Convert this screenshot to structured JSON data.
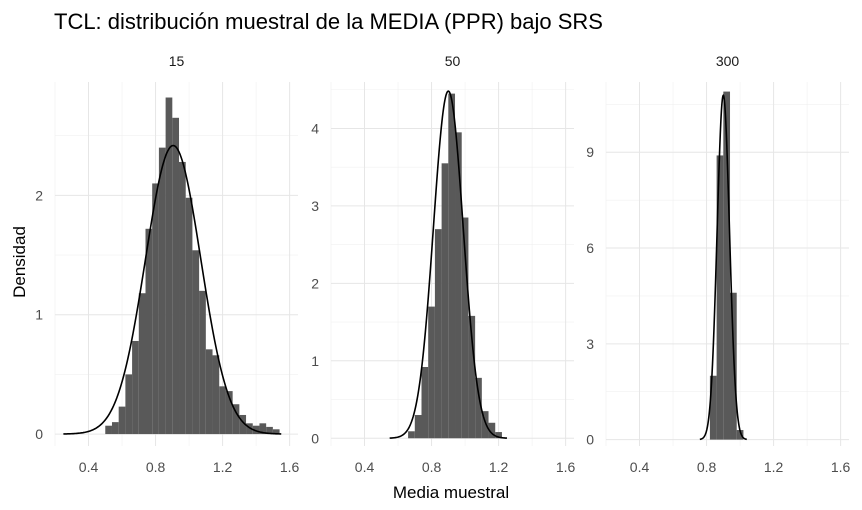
{
  "chart_data": {
    "type": "histogram",
    "title": "TCL: distribución muestral de la MEDIA (PPR) bajo SRS",
    "xlabel": "Media muestral",
    "ylabel": "Densidad",
    "xlim": [
      0.2,
      1.65
    ],
    "xticks": [
      "0.4",
      "0.8",
      "1.2",
      "1.6"
    ],
    "x_tick_values": [
      0.4,
      0.8,
      1.2,
      1.6
    ],
    "grid": true,
    "theme": "minimal",
    "bar_color": "#595959",
    "curve_color": "#000000",
    "bin_width": 0.04,
    "facets": [
      {
        "label": "15",
        "ylim": [
          -0.1,
          2.95
        ],
        "yticks": [
          "0",
          "1",
          "2"
        ],
        "y_tick_values": [
          0,
          1,
          2
        ],
        "bins": [
          [
            0.5,
            0.07
          ],
          [
            0.54,
            0.1
          ],
          [
            0.58,
            0.23
          ],
          [
            0.62,
            0.5
          ],
          [
            0.66,
            0.78
          ],
          [
            0.7,
            1.18
          ],
          [
            0.74,
            1.72
          ],
          [
            0.78,
            2.1
          ],
          [
            0.82,
            2.4
          ],
          [
            0.86,
            2.82
          ],
          [
            0.9,
            2.65
          ],
          [
            0.94,
            2.28
          ],
          [
            0.98,
            1.98
          ],
          [
            1.02,
            1.54
          ],
          [
            1.06,
            1.2
          ],
          [
            1.1,
            0.71
          ],
          [
            1.14,
            0.66
          ],
          [
            1.18,
            0.4
          ],
          [
            1.22,
            0.36
          ],
          [
            1.26,
            0.25
          ],
          [
            1.3,
            0.16
          ],
          [
            1.34,
            0.09
          ],
          [
            1.38,
            0.07
          ],
          [
            1.42,
            0.09
          ],
          [
            1.46,
            0.06
          ],
          [
            1.5,
            0.04
          ]
        ],
        "normal": {
          "mean": 0.905,
          "sd": 0.165,
          "xmin": 0.25,
          "xmax": 1.55
        }
      },
      {
        "label": "50",
        "ylim": [
          -0.1,
          4.6
        ],
        "yticks": [
          "0",
          "1",
          "2",
          "3",
          "4"
        ],
        "y_tick_values": [
          0,
          1,
          2,
          3,
          4
        ],
        "bins": [
          [
            0.66,
            0.09
          ],
          [
            0.7,
            0.3
          ],
          [
            0.74,
            0.92
          ],
          [
            0.78,
            1.7
          ],
          [
            0.82,
            2.7
          ],
          [
            0.86,
            3.55
          ],
          [
            0.9,
            4.45
          ],
          [
            0.94,
            3.95
          ],
          [
            0.98,
            2.85
          ],
          [
            1.02,
            1.58
          ],
          [
            1.06,
            0.78
          ],
          [
            1.1,
            0.35
          ],
          [
            1.14,
            0.2
          ],
          [
            1.18,
            0.08
          ]
        ],
        "normal": {
          "mean": 0.9,
          "sd": 0.089,
          "xmin": 0.55,
          "xmax": 1.25
        }
      },
      {
        "label": "300",
        "ylim": [
          -0.2,
          11.2
        ],
        "yticks": [
          "0",
          "3",
          "6",
          "9"
        ],
        "y_tick_values": [
          0,
          3,
          6,
          9
        ],
        "bins": [
          [
            0.82,
            2.0
          ],
          [
            0.86,
            8.9
          ],
          [
            0.9,
            10.9
          ],
          [
            0.94,
            4.6
          ],
          [
            0.98,
            0.3
          ]
        ],
        "normal": {
          "mean": 0.9,
          "sd": 0.037,
          "xmin": 0.76,
          "xmax": 1.04
        }
      }
    ]
  }
}
